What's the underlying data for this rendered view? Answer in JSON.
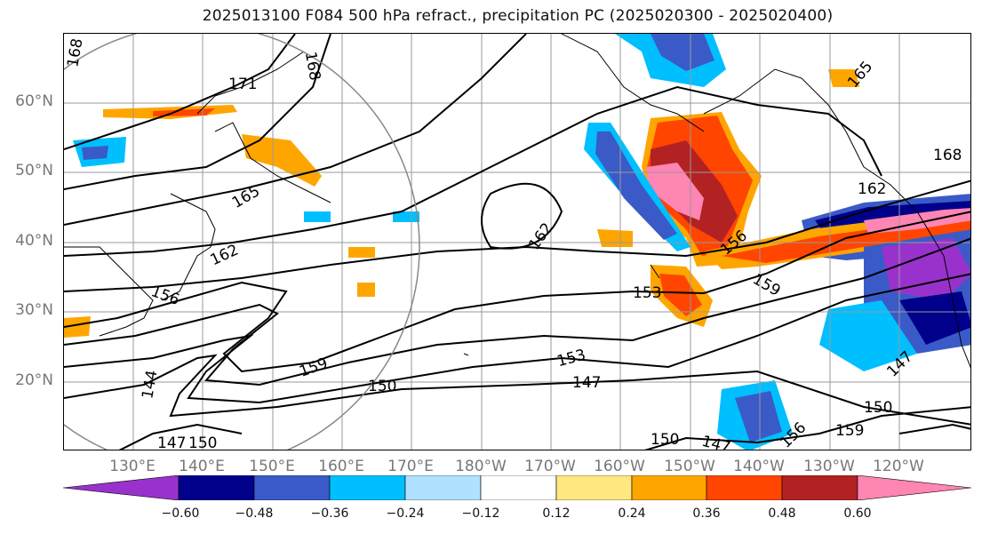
{
  "title": "2025013100 F084 500 hPa refract., precipitation PC (2025020300 - 2025020400)",
  "lat_labels": [
    "60°N",
    "50°N",
    "40°N",
    "30°N",
    "20°N"
  ],
  "lon_labels": [
    "130°E",
    "140°E",
    "150°E",
    "160°E",
    "170°E",
    "180°W",
    "170°W",
    "160°W",
    "150°W",
    "140°W",
    "130°W",
    "120°W"
  ],
  "contour_labels": [
    "168",
    "171",
    "168",
    "165",
    "165",
    "162",
    "162",
    "156",
    "153",
    "159",
    "159",
    "153",
    "150",
    "147",
    "144",
    "147",
    "150",
    "150",
    "147",
    "156",
    "159",
    "147",
    "150",
    "168",
    "162",
    "156"
  ],
  "colorbar": {
    "ticks": [
      "−0.60",
      "−0.48",
      "−0.36",
      "−0.24",
      "−0.12",
      "0.12",
      "0.24",
      "0.36",
      "0.48",
      "0.60"
    ],
    "colors": [
      "#9932CC",
      "#00008B",
      "#3A5BC7",
      "#00BFFF",
      "#B0E2FF",
      "#FFFFFF",
      "#FFE880",
      "#FFA500",
      "#FF4500",
      "#B22222",
      "#FF85B3"
    ]
  }
}
